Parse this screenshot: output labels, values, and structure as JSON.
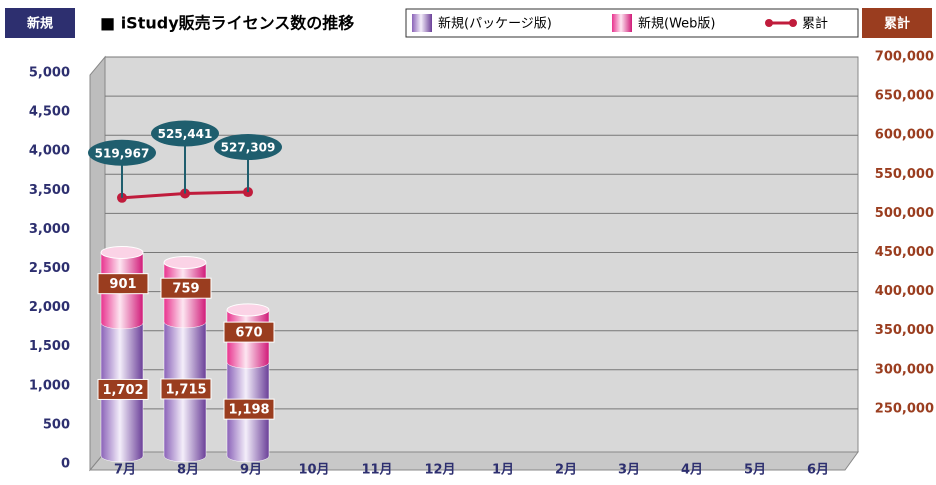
{
  "chart_data": {
    "type": "stacked-cylinder-line",
    "title": "■ iStudy販売ライセンス数の推移",
    "ylabel": "新規",
    "y2label": "累計",
    "categories": [
      "7月",
      "8月",
      "9月",
      "10月",
      "11月",
      "12月",
      "1月",
      "2月",
      "3月",
      "4月",
      "5月",
      "6月"
    ],
    "series": [
      {
        "name": "新規(パッケージ版)",
        "color": "#8a62b8",
        "values": [
          1702,
          1715,
          1198,
          null,
          null,
          null,
          null,
          null,
          null,
          null,
          null,
          null
        ],
        "value_labels": [
          "1,702",
          "1,715",
          "1,198",
          null,
          null,
          null,
          null,
          null,
          null,
          null,
          null,
          null
        ]
      },
      {
        "name": "新規(Web版)",
        "color": "#e8338e",
        "values": [
          901,
          759,
          670,
          null,
          null,
          null,
          null,
          null,
          null,
          null,
          null,
          null
        ],
        "value_labels": [
          "901",
          "759",
          "670",
          null,
          null,
          null,
          null,
          null,
          null,
          null,
          null,
          null
        ]
      },
      {
        "name": "累計",
        "color": "#c01c3c",
        "axis": "y2",
        "values": [
          519967,
          525441,
          527309,
          null,
          null,
          null,
          null,
          null,
          null,
          null,
          null,
          null
        ],
        "value_labels": [
          "519,967",
          "525,441",
          "527,309",
          null,
          null,
          null,
          null,
          null,
          null,
          null,
          null,
          null
        ]
      }
    ],
    "ylim": [
      0,
      5000
    ],
    "yticks": [
      0,
      500,
      {
        "value": 1000,
        "label": "1,000"
      },
      {
        "value": 1500,
        "label": "1,500"
      },
      {
        "value": 2000,
        "label": "2,000"
      },
      {
        "value": 2500,
        "label": "2,500"
      },
      {
        "value": 3000,
        "label": "3,000"
      },
      {
        "value": 3500,
        "label": "3,500"
      },
      {
        "value": 4000,
        "label": "4,000"
      },
      {
        "value": 4500,
        "label": "4,500"
      },
      {
        "value": 5000,
        "label": "5,000"
      }
    ],
    "y2lim": [
      200000,
      700000
    ],
    "y2ticks": [
      {
        "value": 250000,
        "label": "250,000"
      },
      {
        "value": 300000,
        "label": "300,000"
      },
      {
        "value": 350000,
        "label": "350,000"
      },
      {
        "value": 400000,
        "label": "400,000"
      },
      {
        "value": 450000,
        "label": "450,000"
      },
      {
        "value": 500000,
        "label": "500,000"
      },
      {
        "value": 550000,
        "label": "550,000"
      },
      {
        "value": 600000,
        "label": "600,000"
      },
      {
        "value": 650000,
        "label": "650,000"
      },
      {
        "value": 700000,
        "label": "700,000"
      }
    ],
    "grid": true
  }
}
